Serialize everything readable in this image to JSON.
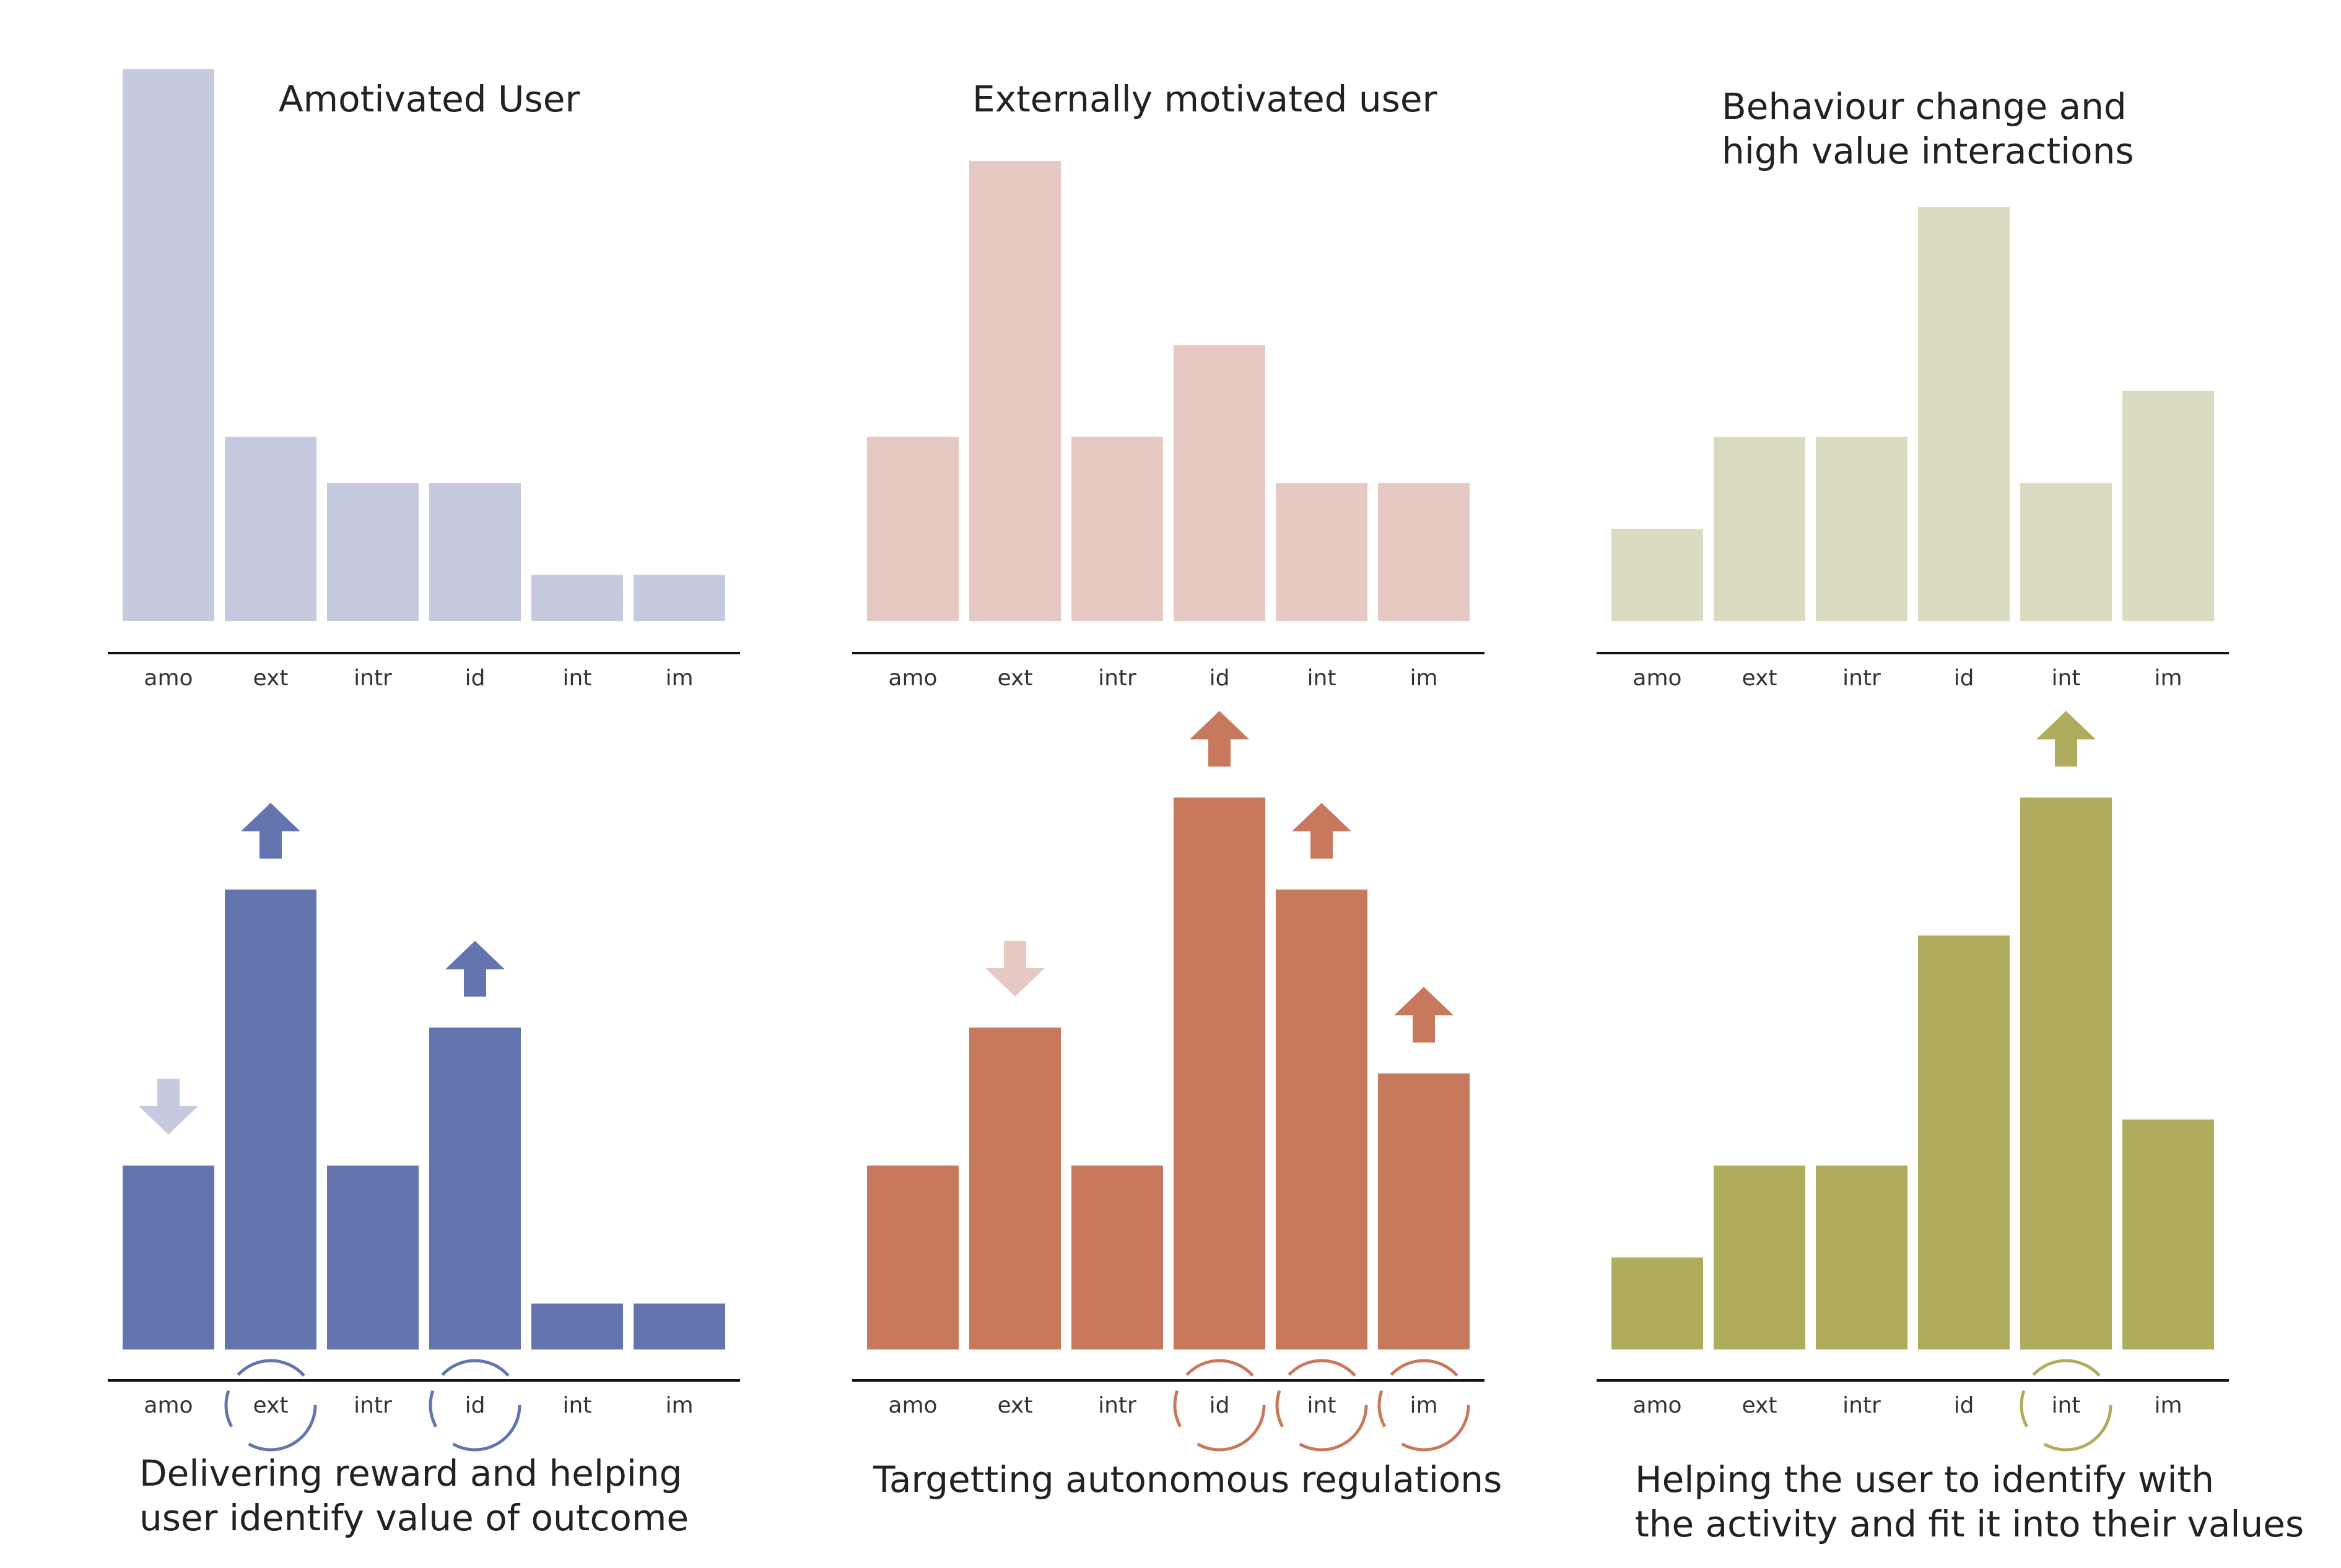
{
  "chart_data": [
    {
      "type": "bar",
      "title": "Amotivated User",
      "categories": [
        "amo",
        "ext",
        "intr",
        "id",
        "int",
        "im"
      ],
      "values": [
        12,
        4,
        3,
        3,
        1,
        1
      ],
      "ylim": [
        0,
        12
      ],
      "color": "#c5cadf",
      "arrows": [],
      "circled": []
    },
    {
      "type": "bar",
      "title": "Externally motivated user",
      "categories": [
        "amo",
        "ext",
        "intr",
        "id",
        "int",
        "im"
      ],
      "values": [
        4,
        10,
        4,
        6,
        3,
        3
      ],
      "ylim": [
        0,
        12
      ],
      "color": "#e6c9c3",
      "arrows": [],
      "circled": []
    },
    {
      "type": "bar",
      "title": "Behaviour change and\nhigh value interactions",
      "categories": [
        "amo",
        "ext",
        "intr",
        "id",
        "int",
        "im"
      ],
      "values": [
        2,
        4,
        4,
        9,
        3,
        5
      ],
      "ylim": [
        0,
        12
      ],
      "color": "#dbdbc2",
      "arrows": [],
      "circled": []
    },
    {
      "type": "bar",
      "title": "Delivering reward and helping\nuser identify value of outcome",
      "categories": [
        "amo",
        "ext",
        "intr",
        "id",
        "int",
        "im"
      ],
      "values": [
        4,
        10,
        4,
        7,
        1,
        1
      ],
      "ylim": [
        0,
        12
      ],
      "color": "#6374ae",
      "light_color": "#c5cadf",
      "arrows": [
        {
          "category": "amo",
          "direction": "down"
        },
        {
          "category": "ext",
          "direction": "up"
        },
        {
          "category": "id",
          "direction": "up"
        }
      ],
      "circled": [
        "ext",
        "id"
      ]
    },
    {
      "type": "bar",
      "title": "Targetting autonomous regulations",
      "categories": [
        "amo",
        "ext",
        "intr",
        "id",
        "int",
        "im"
      ],
      "values": [
        4,
        7,
        4,
        12,
        10,
        6
      ],
      "ylim": [
        0,
        12
      ],
      "color": "#c8785c",
      "light_color": "#e6c9c3",
      "arrows": [
        {
          "category": "ext",
          "direction": "down"
        },
        {
          "category": "id",
          "direction": "up"
        },
        {
          "category": "int",
          "direction": "up"
        },
        {
          "category": "im",
          "direction": "up"
        }
      ],
      "circled": [
        "id",
        "int",
        "im"
      ]
    },
    {
      "type": "bar",
      "title": "Helping the user to identify with\nthe activity and fit it into their values",
      "categories": [
        "amo",
        "ext",
        "intr",
        "id",
        "int",
        "im"
      ],
      "values": [
        2,
        4,
        4,
        9,
        12,
        5
      ],
      "ylim": [
        0,
        12
      ],
      "color": "#afad5d",
      "light_color": "#dbdbc2",
      "arrows": [
        {
          "category": "int",
          "direction": "up"
        }
      ],
      "circled": [
        "int"
      ]
    }
  ]
}
